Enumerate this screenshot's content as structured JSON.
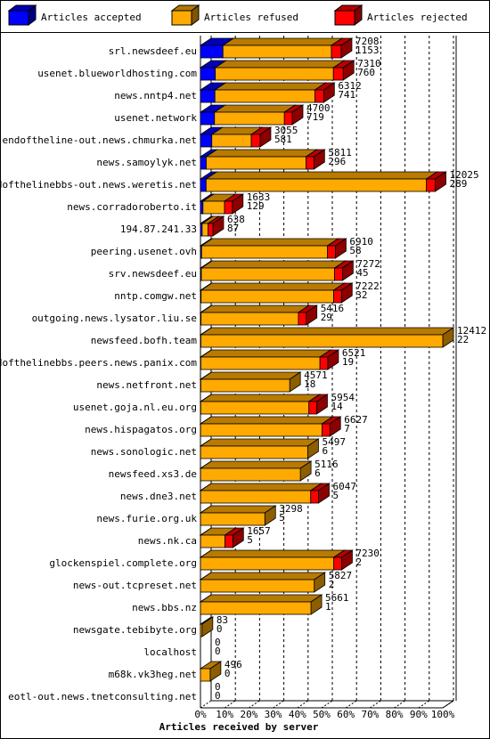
{
  "chart_data": {
    "type": "bar3d",
    "x_label": "Articles received by server",
    "categories": [
      "srl.newsdeef.eu",
      "usenet.blueworldhosting.com",
      "news.nntp4.net",
      "usenet.network",
      "endoftheline-out.news.chmurka.net",
      "news.samoylyk.net",
      "endofthelinebbs-out.news.weretis.net",
      "news.corradoroberto.it",
      "194.87.241.33",
      "peering.usenet.ovh",
      "srv.newsdeef.eu",
      "nntp.comgw.net",
      "outgoing.news.lysator.liu.se",
      "newsfeed.bofh.team",
      "endofthelinebbs.peers.news.panix.com",
      "news.netfront.net",
      "usenet.goja.nl.eu.org",
      "news.hispagatos.org",
      "news.sonologic.net",
      "newsfeed.xs3.de",
      "news.dne3.net",
      "news.furie.org.uk",
      "news.nk.ca",
      "glockenspiel.complete.org",
      "news-out.tcpreset.net",
      "news.bbs.nz",
      "newsgate.tebibyte.org",
      "localhost",
      "m68k.vk3heg.net",
      "eotl-out.news.tnetconsulting.net"
    ],
    "totals": [
      7208,
      7310,
      6312,
      4700,
      3055,
      5811,
      12025,
      1633,
      638,
      6910,
      7272,
      7222,
      5416,
      12412,
      6521,
      4571,
      5954,
      6627,
      5497,
      5116,
      6047,
      3298,
      1657,
      7230,
      5827,
      5661,
      83,
      0,
      496,
      0
    ],
    "series": [
      {
        "name": "Articles accepted",
        "color": "#0000ff",
        "values": [
          1153,
          760,
          741,
          719,
          581,
          296,
          289,
          129,
          87,
          58,
          45,
          32,
          29,
          22,
          19,
          18,
          14,
          7,
          6,
          6,
          5,
          5,
          5,
          2,
          2,
          1,
          0,
          0,
          0,
          0
        ]
      },
      {
        "name": "Articles refused",
        "color": "#ffaa00",
        "values": [
          5555,
          6050,
          5121,
          3581,
          2024,
          5115,
          11286,
          1104,
          301,
          6452,
          6827,
          6790,
          4987,
          12390,
          6102,
          4553,
          5540,
          6220,
          5491,
          5110,
          5642,
          3293,
          1252,
          6828,
          5825,
          5660,
          83,
          0,
          496,
          0
        ]
      },
      {
        "name": "Articles rejected",
        "color": "#ff0000",
        "values": [
          500,
          500,
          450,
          400,
          450,
          400,
          450,
          400,
          250,
          400,
          400,
          400,
          400,
          0,
          400,
          0,
          400,
          400,
          0,
          0,
          400,
          0,
          400,
          400,
          0,
          0,
          0,
          0,
          0,
          0
        ]
      }
    ],
    "xlim": [
      0,
      12412
    ],
    "xticks": [
      {
        "value": 0,
        "label": "0%"
      },
      {
        "value": 1241.2,
        "label": "10%"
      },
      {
        "value": 2482.4,
        "label": "20%"
      },
      {
        "value": 3723.6,
        "label": "30%"
      },
      {
        "value": 4964.8,
        "label": "40%"
      },
      {
        "value": 6206,
        "label": "50%"
      },
      {
        "value": 7447.2,
        "label": "60%"
      },
      {
        "value": 8688.4,
        "label": "70%"
      },
      {
        "value": 9929.6,
        "label": "80%"
      },
      {
        "value": 11170.8,
        "label": "90%"
      },
      {
        "value": 12412,
        "label": "100%"
      }
    ],
    "grid": true
  }
}
